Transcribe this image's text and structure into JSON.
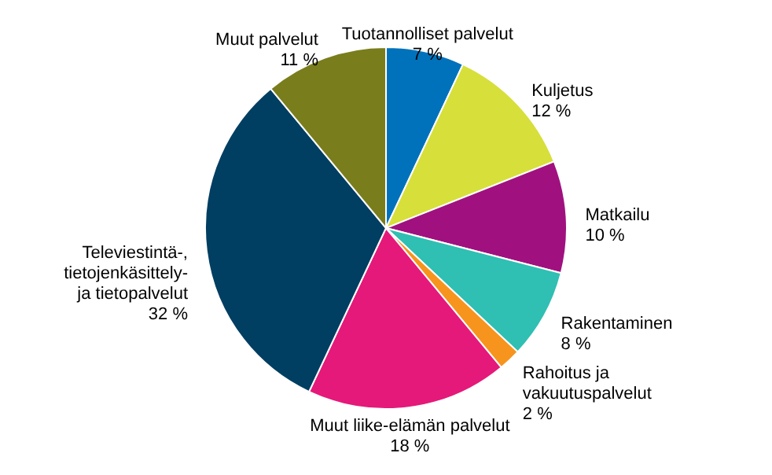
{
  "chart_data": {
    "type": "pie",
    "categories": [
      "Tuotannolliset palvelut",
      "Kuljetus",
      "Matkailu",
      "Rakentaminen",
      "Rahoitus ja\nvakuutuspalvelut",
      "Muut liike-elämän palvelut",
      "Televiestintä-,\ntietojenkäsittely-\nja tietopalvelut",
      "Muut palvelut"
    ],
    "values": [
      7,
      12,
      10,
      8,
      2,
      18,
      32,
      11
    ],
    "value_labels": [
      "7 %",
      "12 %",
      "10 %",
      "8 %",
      "2 %",
      "18 %",
      "32 %",
      "11 %"
    ],
    "colors": [
      "#0072bc",
      "#d7df3a",
      "#a0117f",
      "#2fbfb3",
      "#f7941d",
      "#e5197a",
      "#003e62",
      "#7a7d1c"
    ]
  }
}
